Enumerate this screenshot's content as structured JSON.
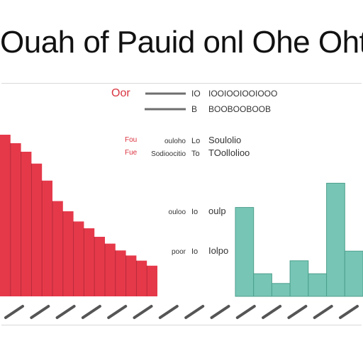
{
  "title": "Ouah of Pauid onl Ohe Oht",
  "colors": {
    "left_series": "#e5394a",
    "right_series": "#77c6b5",
    "right_series_stroke": "#4d9f8d",
    "label_red": "#d9333f",
    "line_gray": "#6e6e6e"
  },
  "chart_data": [
    {
      "type": "area",
      "series": [
        {
          "values": [
            95,
            90,
            85,
            78,
            68,
            56,
            50,
            44,
            40,
            35,
            31,
            27,
            24,
            21,
            18
          ]
        }
      ],
      "legend": [
        "Oor",
        "Fou",
        "Fue"
      ],
      "legend_placement": "top-left",
      "grid": false
    },
    {
      "type": "bar",
      "series": [
        {
          "values": [
            55,
            14,
            8,
            22,
            14,
            70,
            28
          ]
        }
      ],
      "grid": false
    }
  ],
  "center_labels": [
    {
      "left": "",
      "mid": "IO",
      "right": "IOOIOOIOOIOOO"
    },
    {
      "left": "",
      "mid": "B",
      "right": "BOOBOOBOOB"
    },
    {
      "left": "ouloho",
      "mid": "Lo",
      "right": "Soulolio"
    },
    {
      "left": "Sodioocitio",
      "mid": "To",
      "right": "TOollolioo"
    },
    {
      "left": "ouloo",
      "mid": "Io",
      "right": "oulp"
    },
    {
      "left": "poor",
      "mid": "Io",
      "right": "Iolpo"
    }
  ],
  "x_tick_count": 14
}
